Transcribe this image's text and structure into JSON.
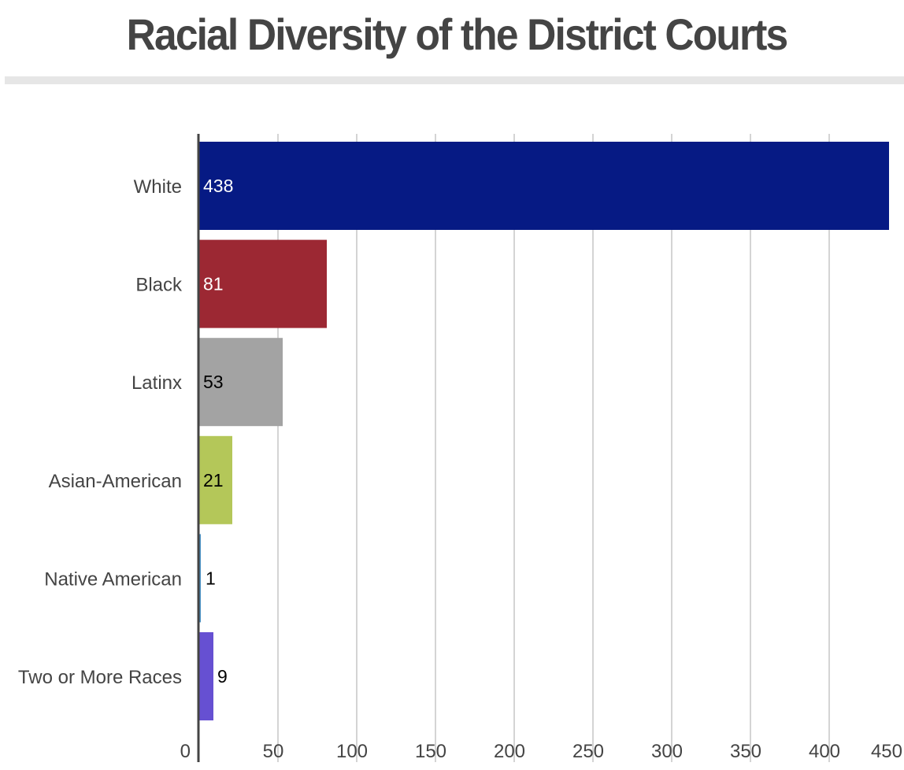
{
  "title": "Racial Diversity of the District Courts",
  "chart_data": {
    "type": "bar",
    "orientation": "horizontal",
    "title": "Racial Diversity of the District Courts",
    "categories": [
      "White",
      "Black",
      "Latinx",
      "Asian-American",
      "Native American",
      "Two or More Races"
    ],
    "values": [
      438,
      81,
      53,
      21,
      1,
      9
    ],
    "colors": [
      "#061a84",
      "#9c2833",
      "#a3a3a3",
      "#b4c759",
      "#4a90c2",
      "#6650d2"
    ],
    "label_colors": [
      "#ffffff",
      "#ffffff",
      "#000000",
      "#000000",
      "#000000",
      "#000000"
    ],
    "xlim": [
      0,
      450
    ],
    "x_ticks": [
      0,
      50,
      100,
      150,
      200,
      250,
      300,
      350,
      400,
      450
    ],
    "xlabel": "",
    "ylabel": "",
    "grid": true,
    "legend": "none"
  }
}
